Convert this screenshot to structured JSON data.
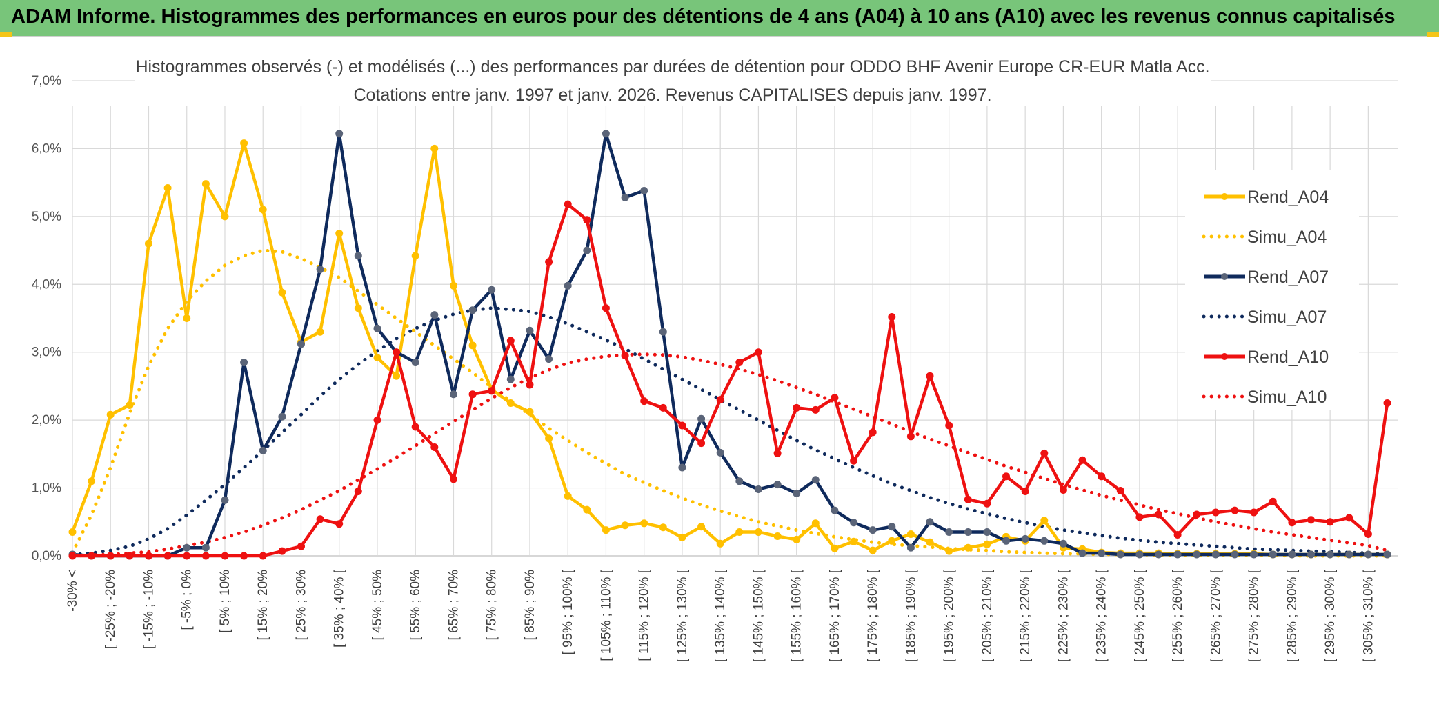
{
  "banner": {
    "title": "ADAM Informe. Histogrammes des performances en euros pour des détentions de 4 ans (A04) à 10 ans (A10) avec les revenus connus capitalisés"
  },
  "colors": {
    "banner_bg": "#78c57a",
    "accent_corner": "#f5c518",
    "a04": "#ffc000",
    "a07": "#0f2a5c",
    "a07_marker": "#5a6478",
    "a10": "#ee1111",
    "grid": "#d9d9d9"
  },
  "chart_data": {
    "type": "line",
    "title_line1": "Histogrammes observés (-) et modélisés (...) des performances par durées de détention pour ODDO BHF Avenir Europe CR-EUR Matla Acc.",
    "title_line2": "Cotations entre janv. 1997 et janv. 2026. Revenus CAPITALISES depuis janv. 1997.",
    "ylim": [
      0,
      7
    ],
    "yticks": [
      "0,0%",
      "1,0%",
      "2,0%",
      "3,0%",
      "4,0%",
      "5,0%",
      "6,0%",
      "7,0%"
    ],
    "n_points": 70,
    "xtick_labels": [
      "-30% <",
      "[ -25% ; -20%",
      "[ -15% ; -10%",
      "[ -5% ; 0%",
      "[ 5% ; 10%",
      "[ 15% ; 20%",
      "[ 25% ; 30%",
      "[ 35% ; 40% [",
      "[ 45% ; 50%",
      "[ 55% ; 60%",
      "[ 65% ; 70%",
      "[ 75% ; 80%",
      "[ 85% ; 90%",
      "[ 95% ; 100% [",
      "[ 105% ; 110% [",
      "[ 115% ; 120% [",
      "[ 125% ; 130% [",
      "[ 135% ; 140% [",
      "[ 145% ; 150% [",
      "[ 155% ; 160% [",
      "[ 165% ; 170% [",
      "[ 175% ; 180% [",
      "[ 185% ; 190% [",
      "[ 195% ; 200% [",
      "[ 205% ; 210% [",
      "[ 215% ; 220% [",
      "[ 225% ; 230% [",
      "[ 235% ; 240% [",
      "[ 245% ; 250% [",
      "[ 255% ; 260% [",
      "[ 265% ; 270% [",
      "[ 275% ; 280% [",
      "[ 285% ; 290% [",
      "[ 295% ; 300% [",
      "[ 305% ; 310% ["
    ],
    "xtick_indices": [
      0,
      2,
      4,
      6,
      8,
      10,
      12,
      14,
      16,
      18,
      20,
      22,
      24,
      26,
      28,
      30,
      32,
      34,
      36,
      38,
      40,
      42,
      44,
      46,
      48,
      50,
      52,
      54,
      56,
      58,
      60,
      62,
      64,
      66,
      68
    ],
    "legend_position": "right",
    "series": [
      {
        "name": "Rend_A04",
        "style": "solid",
        "color": "#ffc000",
        "values": [
          0.35,
          1.1,
          2.08,
          2.22,
          4.6,
          5.42,
          3.5,
          5.48,
          5.0,
          6.08,
          5.1,
          3.88,
          3.15,
          3.3,
          4.75,
          3.65,
          2.92,
          2.65,
          4.42,
          6.0,
          3.98,
          3.1,
          2.45,
          2.25,
          2.12,
          1.73,
          0.88,
          0.68,
          0.38,
          0.45,
          0.48,
          0.42,
          0.27,
          0.43,
          0.18,
          0.35,
          0.35,
          0.29,
          0.24,
          0.48,
          0.11,
          0.21,
          0.08,
          0.22,
          0.32,
          0.2,
          0.07,
          0.12,
          0.17,
          0.28,
          0.22,
          0.52,
          0.12,
          0.1,
          0.05,
          0.04,
          0.04,
          0.04,
          0.03,
          0.03,
          0.03,
          0.03,
          0.03,
          0.02,
          0.02,
          0.02,
          0.02,
          0.02,
          0.02,
          0.02
        ]
      },
      {
        "name": "Simu_A04",
        "style": "dotted",
        "color": "#ffc000",
        "values": [
          0.05,
          0.6,
          1.3,
          2.1,
          2.8,
          3.35,
          3.75,
          4.05,
          4.28,
          4.42,
          4.5,
          4.48,
          4.38,
          4.25,
          4.1,
          3.9,
          3.7,
          3.5,
          3.3,
          3.1,
          2.9,
          2.7,
          2.48,
          2.28,
          2.08,
          1.88,
          1.7,
          1.52,
          1.36,
          1.2,
          1.08,
          0.96,
          0.85,
          0.75,
          0.66,
          0.58,
          0.5,
          0.44,
          0.38,
          0.33,
          0.28,
          0.24,
          0.2,
          0.17,
          0.15,
          0.13,
          0.11,
          0.09,
          0.08,
          0.06,
          0.05,
          0.04,
          0.03,
          0.03,
          0.02,
          0.02,
          0.02,
          0.01,
          0.01,
          0.01,
          0.01,
          0.01,
          0.01,
          0.01,
          0.0,
          0.0,
          0.0,
          0.0,
          0.0,
          0.0
        ]
      },
      {
        "name": "Rend_A07",
        "style": "solid",
        "color": "#0f2a5c",
        "values": [
          0.02,
          0.0,
          0.0,
          0.0,
          0.0,
          0.0,
          0.12,
          0.12,
          0.82,
          2.85,
          1.55,
          2.05,
          3.12,
          4.22,
          6.22,
          4.42,
          3.35,
          3.0,
          2.85,
          3.55,
          2.38,
          3.62,
          3.92,
          2.6,
          3.32,
          2.9,
          3.98,
          4.5,
          6.22,
          5.28,
          5.38,
          3.3,
          1.3,
          2.02,
          1.52,
          1.1,
          0.98,
          1.05,
          0.92,
          1.12,
          0.67,
          0.49,
          0.38,
          0.43,
          0.12,
          0.5,
          0.35,
          0.35,
          0.35,
          0.22,
          0.25,
          0.22,
          0.18,
          0.04,
          0.04,
          0.02,
          0.02,
          0.02,
          0.02,
          0.02,
          0.02,
          0.02,
          0.02,
          0.02,
          0.02,
          0.02,
          0.02,
          0.02,
          0.02,
          0.02
        ]
      },
      {
        "name": "Simu_A07",
        "style": "dotted",
        "color": "#0f2a5c",
        "values": [
          0.02,
          0.04,
          0.08,
          0.14,
          0.25,
          0.4,
          0.6,
          0.82,
          1.05,
          1.3,
          1.55,
          1.82,
          2.08,
          2.35,
          2.6,
          2.82,
          3.02,
          3.2,
          3.35,
          3.47,
          3.56,
          3.62,
          3.65,
          3.63,
          3.6,
          3.52,
          3.42,
          3.3,
          3.18,
          3.05,
          2.9,
          2.75,
          2.6,
          2.45,
          2.3,
          2.15,
          2.0,
          1.85,
          1.7,
          1.56,
          1.43,
          1.3,
          1.18,
          1.06,
          0.96,
          0.86,
          0.77,
          0.69,
          0.62,
          0.55,
          0.49,
          0.43,
          0.38,
          0.34,
          0.3,
          0.26,
          0.23,
          0.2,
          0.18,
          0.16,
          0.14,
          0.12,
          0.1,
          0.09,
          0.08,
          0.07,
          0.06,
          0.05,
          0.04,
          0.03
        ]
      },
      {
        "name": "Rend_A10",
        "style": "solid",
        "color": "#ee1111",
        "values": [
          0.0,
          0.0,
          0.0,
          0.0,
          0.0,
          0.0,
          0.0,
          0.0,
          0.0,
          0.0,
          0.0,
          0.07,
          0.14,
          0.54,
          0.47,
          0.95,
          2.0,
          3.0,
          1.9,
          1.6,
          1.13,
          2.38,
          2.43,
          3.17,
          2.52,
          4.33,
          5.18,
          4.95,
          3.65,
          2.95,
          2.28,
          2.18,
          1.92,
          1.66,
          2.3,
          2.85,
          3.0,
          1.51,
          2.18,
          2.15,
          2.33,
          1.4,
          1.82,
          3.52,
          1.76,
          2.65,
          1.92,
          0.83,
          0.77,
          1.17,
          0.95,
          1.51,
          0.97,
          1.41,
          1.17,
          0.96,
          0.57,
          0.61,
          0.31,
          0.61,
          0.64,
          0.67,
          0.64,
          0.8,
          0.49,
          0.53,
          0.5,
          0.56,
          0.32,
          2.25
        ]
      },
      {
        "name": "Simu_A10",
        "style": "dotted",
        "color": "#ee1111",
        "values": [
          0.0,
          0.01,
          0.02,
          0.04,
          0.06,
          0.1,
          0.15,
          0.2,
          0.27,
          0.35,
          0.45,
          0.56,
          0.68,
          0.82,
          0.96,
          1.12,
          1.28,
          1.45,
          1.62,
          1.8,
          1.98,
          2.15,
          2.32,
          2.48,
          2.62,
          2.74,
          2.84,
          2.9,
          2.94,
          2.96,
          2.97,
          2.96,
          2.93,
          2.88,
          2.82,
          2.75,
          2.67,
          2.58,
          2.48,
          2.38,
          2.27,
          2.16,
          2.05,
          1.94,
          1.83,
          1.72,
          1.62,
          1.52,
          1.42,
          1.32,
          1.23,
          1.14,
          1.05,
          0.97,
          0.89,
          0.82,
          0.75,
          0.68,
          0.62,
          0.56,
          0.5,
          0.45,
          0.4,
          0.35,
          0.31,
          0.27,
          0.23,
          0.19,
          0.15,
          0.08
        ]
      }
    ]
  }
}
